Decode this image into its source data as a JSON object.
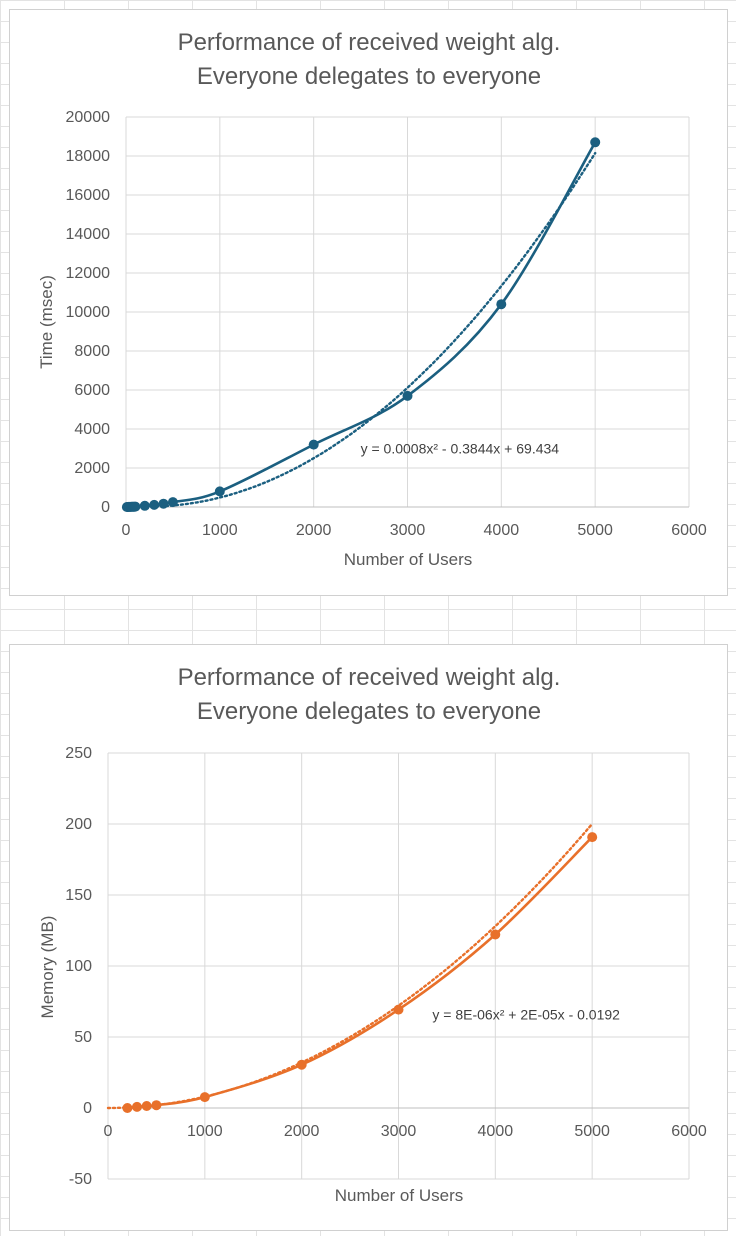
{
  "chart_data": [
    {
      "type": "scatter",
      "title_lines": [
        "Performance of received weight alg.",
        "Everyone delegates to everyone"
      ],
      "xlabel": "Number of Users",
      "ylabel": "Time (msec)",
      "xlim": [
        0,
        6000
      ],
      "ylim": [
        0,
        20000
      ],
      "xticks": [
        0,
        1000,
        2000,
        3000,
        4000,
        5000,
        6000
      ],
      "yticks": [
        0,
        2000,
        4000,
        6000,
        8000,
        10000,
        12000,
        14000,
        16000,
        18000,
        20000
      ],
      "grid": true,
      "color": "#1b5f80",
      "x": [
        10,
        20,
        30,
        40,
        50,
        60,
        70,
        80,
        90,
        100,
        200,
        300,
        400,
        500,
        1000,
        2000,
        3000,
        4000,
        5000
      ],
      "y": [
        1,
        2,
        3,
        4,
        6,
        8,
        10,
        13,
        16,
        20,
        60,
        110,
        170,
        250,
        800,
        3200,
        5700,
        10400,
        18700
      ],
      "trendline": {
        "type": "poly2",
        "coefficients": [
          0.0008,
          -0.3844,
          69.434
        ],
        "x_range": [
          0,
          5000
        ]
      },
      "trendline_label": {
        "text": "y = 0.0008x² - 0.3844x + 69.434",
        "x": 2500,
        "y": 3000
      }
    },
    {
      "type": "scatter",
      "title_lines": [
        "Performance of received weight alg.",
        "Everyone delegates to everyone"
      ],
      "xlabel": "Number of Users",
      "ylabel": "Memory (MB)",
      "xlim": [
        0,
        6000
      ],
      "ylim": [
        -50,
        250
      ],
      "xticks": [
        0,
        1000,
        2000,
        3000,
        4000,
        5000,
        6000
      ],
      "yticks": [
        -50,
        0,
        50,
        100,
        150,
        200,
        250
      ],
      "grid": true,
      "color": "#e8702a",
      "x": [
        200,
        300,
        400,
        500,
        1000,
        2000,
        3000,
        4000,
        5000
      ],
      "y": [
        0.0,
        0.8,
        1.4,
        2.0,
        7.7,
        30.5,
        69.3,
        122.2,
        190.8
      ],
      "trendline": {
        "type": "poly2",
        "coefficients": [
          8e-06,
          2e-05,
          -0.0192
        ],
        "x_range": [
          0,
          5000
        ]
      },
      "trendline_label": {
        "text": "y = 8E-06x² + 2E-05x - 0.0192",
        "x": 3350,
        "y": 66
      }
    }
  ]
}
